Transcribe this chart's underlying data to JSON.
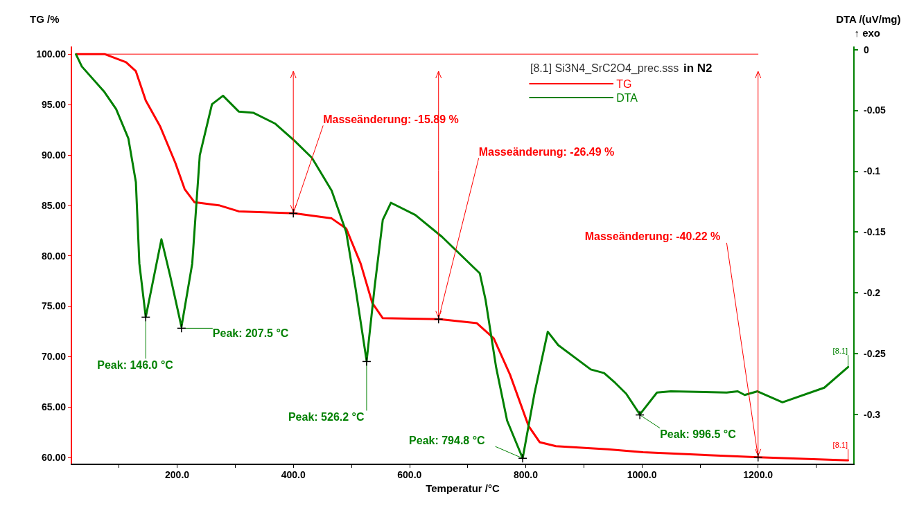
{
  "chart_data": {
    "type": "line",
    "xlabel": "Temperatur /°C",
    "ylabel": "TG /%",
    "y2label": "DTA /(uV/mg)",
    "legend_title": "[8.1] Si3N4_SrC2O4_prec.sss",
    "xlim": [
      18,
      1365
    ],
    "xticks": [
      {
        "value": 100,
        "label": null
      },
      {
        "value": 200,
        "label": "200.0"
      },
      {
        "value": 300,
        "label": null
      },
      {
        "value": 400,
        "label": "400.0"
      },
      {
        "value": 500,
        "label": null
      },
      {
        "value": 600,
        "label": "600.0"
      },
      {
        "value": 700,
        "label": null
      },
      {
        "value": 800,
        "label": "800.0"
      },
      {
        "value": 900,
        "label": null
      },
      {
        "value": 1000,
        "label": "1000.0"
      },
      {
        "value": 1100,
        "label": null
      },
      {
        "value": 1200,
        "label": "1200.0"
      },
      {
        "value": 1300,
        "label": null
      }
    ],
    "ylim": [
      59.3,
      100.7
    ],
    "yticks": [
      {
        "value": 60,
        "label": "60.00"
      },
      {
        "value": 65,
        "label": "65.00"
      },
      {
        "value": 70,
        "label": "70.00"
      },
      {
        "value": 75,
        "label": "75.00"
      },
      {
        "value": 80,
        "label": "80.00"
      },
      {
        "value": 85,
        "label": "85.00"
      },
      {
        "value": 90,
        "label": "90.00"
      },
      {
        "value": 95,
        "label": "95.00"
      },
      {
        "value": 100,
        "label": "100.00"
      }
    ],
    "y2lim": [
      -0.341,
      0.002
    ],
    "y2ticks": [
      0,
      -0.05,
      -0.1,
      -0.15,
      -0.2,
      -0.25,
      -0.3
    ],
    "grid": false,
    "legend": "top right",
    "marker": "none",
    "line_style": "solid",
    "series": [
      {
        "name": "TG",
        "color": "#ff0000",
        "x": [
          26,
          75,
          112,
          129,
          146,
          171,
          197,
          213,
          230,
          272,
          306,
          402,
          466,
          491,
          516,
          536,
          554,
          652,
          716,
          745,
          773,
          805,
          824,
          852,
          941,
          1002,
          1200,
          1355
        ],
        "values": [
          100,
          100,
          99.2,
          98.3,
          95.4,
          92.8,
          89.2,
          86.6,
          85.3,
          85.0,
          84.4,
          84.2,
          83.7,
          82.7,
          79.2,
          75.3,
          73.8,
          73.7,
          73.3,
          71.8,
          68.2,
          63.1,
          61.5,
          61.1,
          60.8,
          60.5,
          60.0,
          59.7
        ]
      },
      {
        "name": "DTA",
        "color": "#008000",
        "axis": "y2",
        "x": [
          26,
          36,
          75,
          95,
          116,
          129,
          135,
          146,
          173,
          188,
          207.5,
          226,
          239,
          260,
          279,
          306,
          331,
          369,
          402,
          432,
          466,
          491,
          507,
          526.2,
          540,
          554,
          568,
          610,
          656,
          721,
          731,
          749,
          768,
          794.8,
          815,
          838,
          856,
          912,
          935,
          954,
          973,
          996.5,
          1026,
          1050,
          1146,
          1165,
          1177,
          1199,
          1242,
          1314,
          1355
        ],
        "values": [
          -0.004,
          -0.014,
          -0.035,
          -0.049,
          -0.073,
          -0.109,
          -0.176,
          -0.22,
          -0.156,
          -0.186,
          -0.228,
          -0.176,
          -0.087,
          -0.045,
          -0.038,
          -0.051,
          -0.052,
          -0.061,
          -0.075,
          -0.089,
          -0.116,
          -0.15,
          -0.196,
          -0.256,
          -0.195,
          -0.14,
          -0.126,
          -0.136,
          -0.154,
          -0.184,
          -0.206,
          -0.261,
          -0.305,
          -0.336,
          -0.283,
          -0.232,
          -0.243,
          -0.263,
          -0.266,
          -0.274,
          -0.283,
          -0.3,
          -0.282,
          -0.281,
          -0.282,
          -0.281,
          -0.284,
          -0.281,
          -0.29,
          -0.278,
          -0.261
        ]
      },
      {
        "color": "#ff0000",
        "x": [
          26,
          1200
        ],
        "values": [
          100,
          100
        ]
      }
    ],
    "annotations": [
      "↑ exo",
      "in N2",
      {
        "text": "Masseänderung: -15.89 %",
        "x": 400,
        "y": 84.2
      },
      {
        "text": "Masseänderung: -26.49 %",
        "x": 650,
        "y": 73.7
      },
      {
        "text": "Masseänderung: -40.22 %",
        "x": 1200,
        "y": 60.0
      },
      {
        "text": "Peak: 146.0 °C",
        "x": 146,
        "y": 73.9
      },
      {
        "text": "Peak: 207.5 °C",
        "x": 207.5,
        "y": 72.8
      },
      {
        "text": "Peak: 526.2 °C",
        "x": 526.2,
        "y": 69.5
      },
      {
        "text": "Peak: 794.8 °C",
        "x": 794.8,
        "y": 59.9
      },
      {
        "text": "Peak: 996.5 °C",
        "x": 996.5,
        "y": 64.2
      },
      {
        "text": "[8.1]",
        "x": 1355,
        "y": 68.9
      },
      {
        "text": "[8.1]",
        "x": 1355,
        "y": 59.7
      }
    ]
  }
}
